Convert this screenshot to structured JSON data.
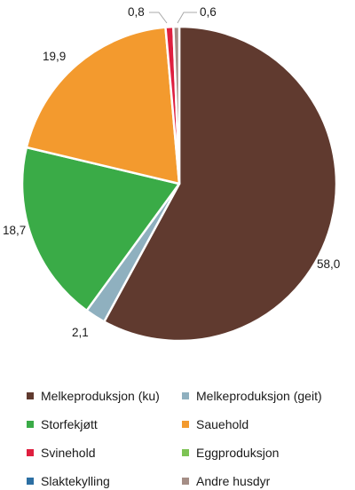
{
  "chart_data": {
    "type": "pie",
    "start_angle_deg": 0,
    "direction": "clockwise",
    "slices": [
      {
        "label": "Melkeproduksjon (ku)",
        "value": 58.0,
        "display": "58,0",
        "color": "#603a2f"
      },
      {
        "label": "Melkeproduksjon (geit)",
        "value": 2.1,
        "display": "2,1",
        "color": "#8fb0bf"
      },
      {
        "label": "Storfekjøtt",
        "value": 18.7,
        "display": "18,7",
        "color": "#3aab47"
      },
      {
        "label": "Sauehold",
        "value": 19.9,
        "display": "19,9",
        "color": "#f39a2e"
      },
      {
        "label": "Svinehold",
        "value": 0.8,
        "display": "0,8",
        "color": "#df1f3f"
      },
      {
        "label": "Eggproduksjon",
        "value": 0.0,
        "display": "",
        "color": "#7dc354"
      },
      {
        "label": "Slaktekylling",
        "value": 0.0,
        "display": "",
        "color": "#2c6fa3"
      },
      {
        "label": "Andre husdyr",
        "value": 0.6,
        "display": "0,6",
        "color": "#a58e86"
      }
    ],
    "legend_position": "bottom",
    "legend_columns": 2
  }
}
